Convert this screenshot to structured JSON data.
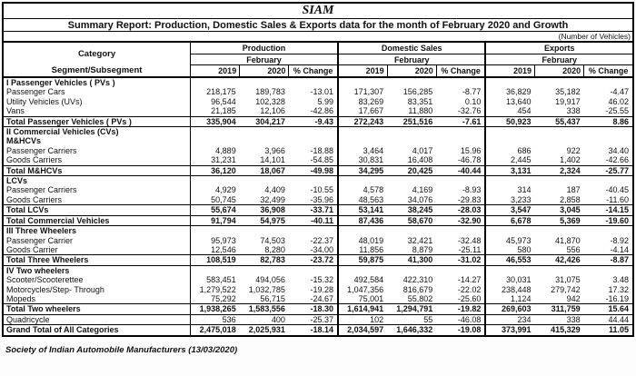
{
  "report": {
    "title": "SIAM",
    "subtitle": "Summary Report: Production, Domestic Sales & Exports data for the month of February 2020  and Growth",
    "units_note": "(Number of Vehicles)",
    "footer": "Society of Indian Automobile Manufacturers (13/03/2020)"
  },
  "header": {
    "category": "Category",
    "segment": "Segment/Subsegment",
    "period": "February",
    "groups": [
      "Production",
      "Domestic Sales",
      "Exports"
    ],
    "year_cols": [
      "2019",
      "2020",
      "% Change"
    ]
  },
  "table": {
    "rows": [
      {
        "type": "section",
        "label": "I Passenger Vehicles ( PVs )",
        "cells": [
          "",
          "",
          "",
          "",
          "",
          "",
          "",
          "",
          ""
        ]
      },
      {
        "type": "data",
        "label": "Passenger Cars",
        "cells": [
          "218,175",
          "189,783",
          "-13.01",
          "171,307",
          "156,285",
          "-8.77",
          "36,829",
          "35,182",
          "-4.47"
        ]
      },
      {
        "type": "data",
        "label": "Utility Vehicles (UVs)",
        "cells": [
          "96,544",
          "102,328",
          "5.99",
          "83,269",
          "83,351",
          "0.10",
          "13,640",
          "19,917",
          "46.02"
        ]
      },
      {
        "type": "data",
        "label": "Vans",
        "cells": [
          "21,185",
          "12,106",
          "-42.86",
          "17,667",
          "11,880",
          "-32.76",
          "454",
          "338",
          "-25.55"
        ]
      },
      {
        "type": "total",
        "label": "Total Passenger Vehicles ( PVs )",
        "cells": [
          "335,904",
          "304,217",
          "-9.43",
          "272,243",
          "251,516",
          "-7.61",
          "50,923",
          "55,437",
          "8.86"
        ]
      },
      {
        "type": "section",
        "label": "II Commercial Vehicles (CVs)",
        "cells": [
          "",
          "",
          "",
          "",
          "",
          "",
          "",
          "",
          ""
        ]
      },
      {
        "type": "section",
        "label": "M&HCVs",
        "cells": [
          "",
          "",
          "",
          "",
          "",
          "",
          "",
          "",
          ""
        ]
      },
      {
        "type": "data",
        "label": "Passenger Carriers",
        "cells": [
          "4,889",
          "3,966",
          "-18.88",
          "3,464",
          "4,017",
          "15.96",
          "686",
          "922",
          "34.40"
        ]
      },
      {
        "type": "data",
        "label": "Goods Carriers",
        "cells": [
          "31,231",
          "14,101",
          "-54.85",
          "30,831",
          "16,408",
          "-46.78",
          "2,445",
          "1,402",
          "-42.66"
        ]
      },
      {
        "type": "total",
        "label": "Total M&HCVs",
        "cells": [
          "36,120",
          "18,067",
          "-49.98",
          "34,295",
          "20,425",
          "-40.44",
          "3,131",
          "2,324",
          "-25.77"
        ]
      },
      {
        "type": "section",
        "label": "LCVs",
        "cells": [
          "",
          "",
          "",
          "",
          "",
          "",
          "",
          "",
          ""
        ]
      },
      {
        "type": "data",
        "label": "Passenger Carriers",
        "cells": [
          "4,929",
          "4,409",
          "-10.55",
          "4,578",
          "4,169",
          "-8.93",
          "314",
          "187",
          "-40.45"
        ]
      },
      {
        "type": "data",
        "label": "Goods Carriers",
        "cells": [
          "50,745",
          "32,499",
          "-35.96",
          "48,563",
          "34,076",
          "-29.83",
          "3,233",
          "2,858",
          "-11.60"
        ]
      },
      {
        "type": "total",
        "label": "Total LCVs",
        "cells": [
          "55,674",
          "36,908",
          "-33.71",
          "53,141",
          "38,245",
          "-28.03",
          "3,547",
          "3,045",
          "-14.15"
        ]
      },
      {
        "type": "total",
        "label": "Total  Commercial Vehicles",
        "cells": [
          "91,794",
          "54,975",
          "-40.11",
          "87,436",
          "58,670",
          "-32.90",
          "6,678",
          "5,369",
          "-19.60"
        ]
      },
      {
        "type": "section",
        "label": "III Three Wheelers",
        "cells": [
          "",
          "",
          "",
          "",
          "",
          "",
          "",
          "",
          ""
        ]
      },
      {
        "type": "data",
        "label": "Passenger Carrier",
        "cells": [
          "95,973",
          "74,503",
          "-22.37",
          "48,019",
          "32,421",
          "-32.48",
          "45,973",
          "41,870",
          "-8.92"
        ]
      },
      {
        "type": "data",
        "label": "Goods Carrier",
        "cells": [
          "12,546",
          "8,280",
          "-34.00",
          "11,856",
          "8,879",
          "-25.11",
          "580",
          "556",
          "-4.14"
        ]
      },
      {
        "type": "total",
        "label": "Total Three Wheelers",
        "cells": [
          "108,519",
          "82,783",
          "-23.72",
          "59,875",
          "41,300",
          "-31.02",
          "46,553",
          "42,426",
          "-8.87"
        ]
      },
      {
        "type": "section",
        "label": "IV Two wheelers",
        "cells": [
          "",
          "",
          "",
          "",
          "",
          "",
          "",
          "",
          ""
        ]
      },
      {
        "type": "data",
        "label": "Scooter/Scooterettee",
        "cells": [
          "583,451",
          "494,056",
          "-15.32",
          "492,584",
          "422,310",
          "-14.27",
          "30,031",
          "31,075",
          "3.48"
        ]
      },
      {
        "type": "data",
        "label": "Motorcycles/Step- Through",
        "cells": [
          "1,279,522",
          "1,032,785",
          "-19.28",
          "1,047,356",
          "816,679",
          "-22.02",
          "238,448",
          "279,742",
          "17.32"
        ]
      },
      {
        "type": "data",
        "label": "Mopeds",
        "cells": [
          "75,292",
          "56,715",
          "-24.67",
          "75,001",
          "55,802",
          "-25.60",
          "1,124",
          "942",
          "-16.19"
        ]
      },
      {
        "type": "total",
        "label": "Total Two wheelers",
        "cells": [
          "1,938,265",
          "1,583,556",
          "-18.30",
          "1,614,941",
          "1,294,791",
          "-19.82",
          "269,603",
          "311,759",
          "15.64"
        ]
      },
      {
        "type": "plain",
        "label": "Quadricycle",
        "cells": [
          "536",
          "400",
          "-25.37",
          "102",
          "55",
          "-46.08",
          "234",
          "338",
          "44.44"
        ]
      },
      {
        "type": "grand",
        "label": "Grand Total of All Categories",
        "cells": [
          "2,475,018",
          "2,025,931",
          "-18.14",
          "2,034,597",
          "1,646,332",
          "-19.08",
          "373,991",
          "415,329",
          "11.05"
        ]
      }
    ]
  }
}
